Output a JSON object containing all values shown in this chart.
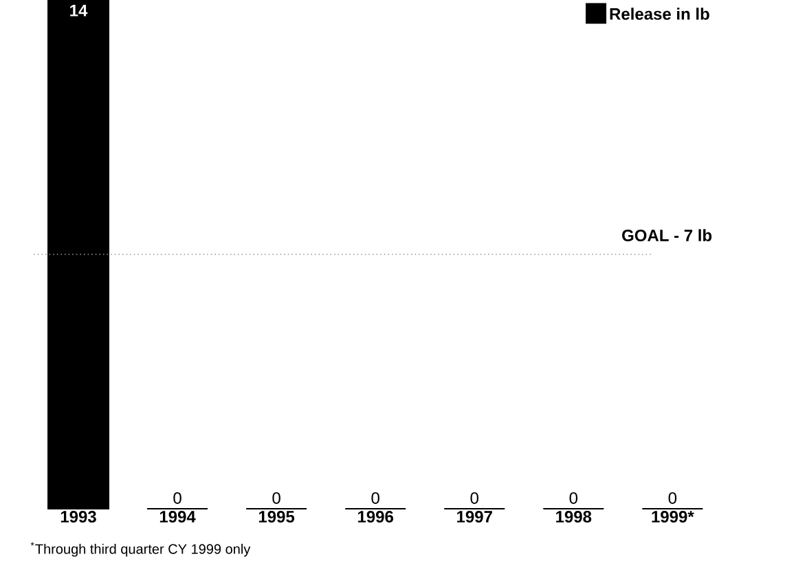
{
  "chart_data": {
    "type": "bar",
    "categories": [
      "1993",
      "1994",
      "1995",
      "1996",
      "1997",
      "1998",
      "1999*"
    ],
    "series": [
      {
        "name": "Release in lb",
        "color": "#000000",
        "values": [
          14,
          0,
          0,
          0,
          0,
          0,
          0
        ]
      }
    ],
    "ylim": [
      0,
      14
    ],
    "data_labels": true,
    "legend": "top right",
    "ref_lines": [
      {
        "axis": "y",
        "value": 7,
        "label": "GOAL - 7 lb",
        "color": "#999999",
        "line_style": "dotted"
      }
    ],
    "annotations": [
      "$^{*}$Through third quarter CY 1999 only"
    ]
  }
}
